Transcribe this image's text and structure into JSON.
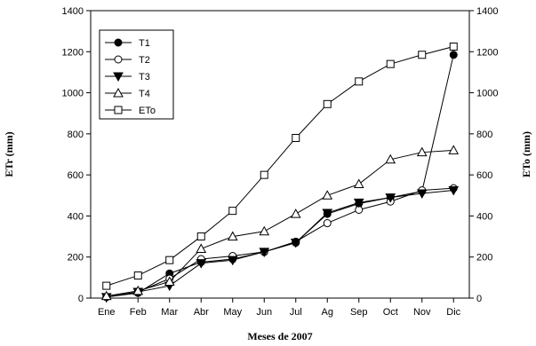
{
  "chart_data": {
    "type": "line",
    "xlabel": "Meses de 2007",
    "ylabel": "ETr (mm)",
    "y2label": "ETo (mm)",
    "categories": [
      "Ene",
      "Feb",
      "Mar",
      "Abr",
      "May",
      "Jun",
      "Jul",
      "Ag",
      "Sep",
      "Oct",
      "Nov",
      "Dic"
    ],
    "ylim": [
      0,
      1400
    ],
    "y2lim": [
      0,
      1400
    ],
    "yticks": [
      0,
      200,
      400,
      600,
      800,
      1000,
      1200,
      1400
    ],
    "grid": false,
    "legend_position": "top-left",
    "series": [
      {
        "name": "T1",
        "marker": "circle-filled",
        "values": [
          5,
          25,
          120,
          175,
          190,
          225,
          270,
          410,
          460,
          490,
          520,
          1185
        ]
      },
      {
        "name": "T2",
        "marker": "circle-open",
        "values": [
          5,
          30,
          95,
          190,
          205,
          225,
          275,
          365,
          430,
          470,
          525,
          535
        ]
      },
      {
        "name": "T3",
        "marker": "triangle-down-filled",
        "values": [
          5,
          30,
          60,
          170,
          185,
          225,
          270,
          415,
          465,
          490,
          510,
          525
        ]
      },
      {
        "name": "T4",
        "marker": "triangle-up-open",
        "values": [
          10,
          35,
          80,
          240,
          300,
          325,
          410,
          500,
          555,
          675,
          710,
          720
        ]
      },
      {
        "name": "ETo",
        "marker": "square-open",
        "values": [
          60,
          110,
          185,
          300,
          425,
          600,
          780,
          945,
          1055,
          1140,
          1185,
          1225
        ]
      }
    ]
  }
}
